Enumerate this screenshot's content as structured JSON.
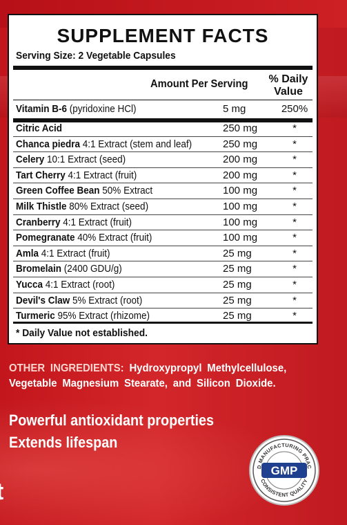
{
  "panel": {
    "title": "SUPPLEMENT FACTS",
    "serving_size": "Serving Size: 2 Vegetable Capsules",
    "header_amount": "Amount Per Serving",
    "header_dv_line1": "% Daily",
    "header_dv_line2": "Value",
    "vitamin": {
      "name": "Vitamin B-6",
      "detail": " (pyridoxine HCl)",
      "amount": "5 mg",
      "dv": "250%"
    },
    "ingredients": [
      {
        "name": "Citric Acid",
        "detail": "",
        "amount": "250 mg",
        "dv": "*"
      },
      {
        "name": "Chanca piedra",
        "detail": "  4:1 Extract (stem and leaf)",
        "amount": "250 mg",
        "dv": "*"
      },
      {
        "name": "Celery",
        "detail": " 10:1 Extract (seed)",
        "amount": "200 mg",
        "dv": "*"
      },
      {
        "name": "Tart Cherry",
        "detail": " 4:1 Extract (fruit)",
        "amount": "200 mg",
        "dv": "*"
      },
      {
        "name": "Green Coffee Bean",
        "detail": " 50% Extract",
        "amount": "100 mg",
        "dv": "*"
      },
      {
        "name": "Milk Thistle",
        "detail": " 80% Extract (seed)",
        "amount": "100 mg",
        "dv": "*"
      },
      {
        "name": "Cranberry",
        "detail": " 4:1 Extract (fruit)",
        "amount": "100 mg",
        "dv": "*"
      },
      {
        "name": "Pomegranate",
        "detail": " 40% Extract (fruit)",
        "amount": "100 mg",
        "dv": "*"
      },
      {
        "name": "Amla",
        "detail": " 4:1 Extract (fruit)",
        "amount": "25 mg",
        "dv": "*"
      },
      {
        "name": "Bromelain",
        "detail": " (2400 GDU/g)",
        "amount": "25 mg",
        "dv": "*"
      },
      {
        "name": "Yucca",
        "detail": " 4:1 Extract (root)",
        "amount": "25 mg",
        "dv": "*"
      },
      {
        "name": "Devil's Claw",
        "detail": " 5% Extract (root)",
        "amount": "25 mg",
        "dv": "*"
      },
      {
        "name": "Turmeric",
        "detail": " 95% Extract (rhizome)",
        "amount": "25 mg",
        "dv": "*"
      }
    ],
    "footnote": "* Daily Value not established."
  },
  "other_ingredients": {
    "label": "OTHER INGREDIENTS:",
    "text": " Hydroxypropyl Methylcellulose, Vegetable Magnesium Stearate, and Silicon Dioxide."
  },
  "claims": [
    "Powerful antioxidant properties",
    "Extends lifespan"
  ],
  "seal": {
    "center": "GMP",
    "top_arc": "GOOD MANUFACTURING PRACTICE",
    "bottom_arc": "CONSISTENT QUALITY"
  },
  "edge_letter": "t",
  "colors": {
    "background": "#c8191f",
    "panel": "#ffffff",
    "text_dark": "#111111",
    "seal_blue": "#1f3f8f"
  }
}
